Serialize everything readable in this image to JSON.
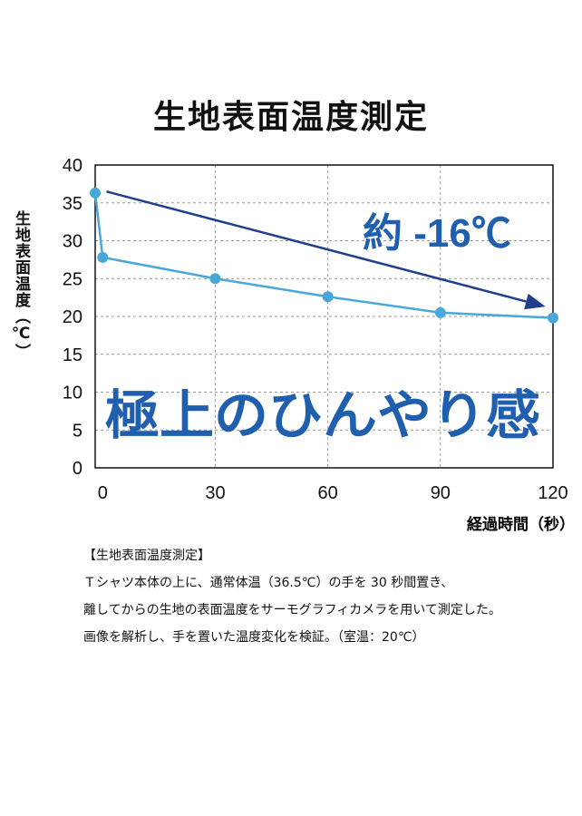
{
  "title": "生地表面温度測定",
  "chart_data": {
    "type": "line",
    "title": "生地表面温度測定",
    "xlabel": "経過時間（秒）",
    "ylabel": "生地表面温度（℃）",
    "x_ticks": [
      0,
      30,
      60,
      90,
      120
    ],
    "y_ticks": [
      0,
      5,
      10,
      15,
      20,
      25,
      30,
      35,
      40
    ],
    "xlim": [
      -2,
      120
    ],
    "ylim": [
      0,
      40
    ],
    "grid": true,
    "series": [
      {
        "x": [
          -2,
          0,
          30,
          60,
          90,
          120
        ],
        "y": [
          36.3,
          27.8,
          25.0,
          22.6,
          20.5,
          19.8
        ]
      }
    ],
    "trend_arrow": {
      "from": [
        1,
        36.5
      ],
      "to": [
        118,
        21.3
      ]
    },
    "annotations": {
      "drop": "約 -16℃",
      "slogan": "極上のひんやり感"
    }
  },
  "note": {
    "heading": "【生地表面温度測定】",
    "lines": [
      "Ｔシャツ本体の上に、通常体温（36.5℃）の手を 30 秒間置き、",
      "離してからの生地の表面温度をサーモグラフィカメラを用いて測定した。",
      "画像を解析し、手を置いた温度変化を検証。（室温：20℃）"
    ]
  },
  "colors": {
    "line": "#4aa8d8",
    "arrow": "#1f3f8a",
    "annotation": "#1f5fae",
    "grid": "#9a9a9a"
  }
}
